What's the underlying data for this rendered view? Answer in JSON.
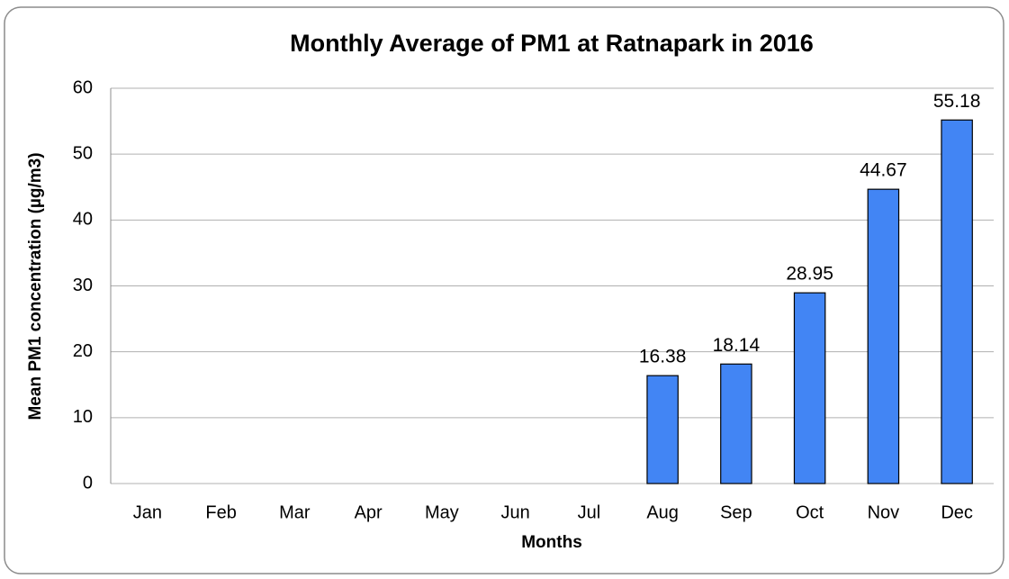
{
  "chart_data": {
    "type": "bar",
    "title": "Monthly Average of PM1 at Ratnapark in 2016",
    "x_label": "Months",
    "y_label": "Mean PM1 concentration (µg/m3)",
    "categories": [
      "Jan",
      "Feb",
      "Mar",
      "Apr",
      "May",
      "Jun",
      "Jul",
      "Aug",
      "Sep",
      "Oct",
      "Nov",
      "Dec"
    ],
    "values": [
      null,
      null,
      null,
      null,
      null,
      null,
      null,
      16.38,
      18.14,
      28.95,
      44.67,
      55.18
    ],
    "color": "#4285f4",
    "ylim": [
      0,
      60
    ],
    "yticks": [
      0,
      10,
      20,
      30,
      40,
      50,
      60
    ],
    "grid": true
  }
}
